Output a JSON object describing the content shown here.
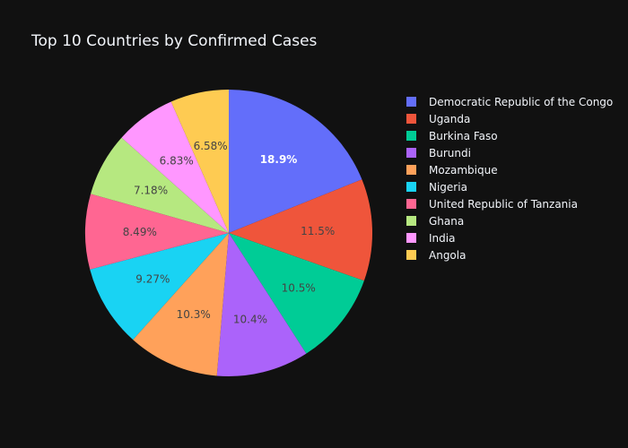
{
  "chart_data": {
    "type": "pie",
    "title": "Top 10 Countries by Confirmed Cases",
    "categories": [
      "Democratic Republic of the Congo",
      "Uganda",
      "Burkina Faso",
      "Burundi",
      "Mozambique",
      "Nigeria",
      "United Republic of Tanzania",
      "Ghana",
      "India",
      "Angola"
    ],
    "values": [
      18.9,
      11.5,
      10.5,
      10.4,
      10.3,
      9.27,
      8.49,
      7.18,
      6.83,
      6.58
    ],
    "labels": [
      "18.9%",
      "11.5%",
      "10.5%",
      "10.4%",
      "10.3%",
      "9.27%",
      "8.49%",
      "7.18%",
      "6.83%",
      "6.58%"
    ],
    "colors": [
      "#636efa",
      "#EF553B",
      "#00cc96",
      "#ab63fa",
      "#FFA15A",
      "#19d3f3",
      "#FF6692",
      "#B6E880",
      "#FF97FF",
      "#FECB52"
    ],
    "label_colors": [
      "#ffffff",
      "#444444",
      "#444444",
      "#444444",
      "#444444",
      "#444444",
      "#444444",
      "#444444",
      "#444444",
      "#444444"
    ],
    "legend_position": "right",
    "background": "#111111"
  }
}
